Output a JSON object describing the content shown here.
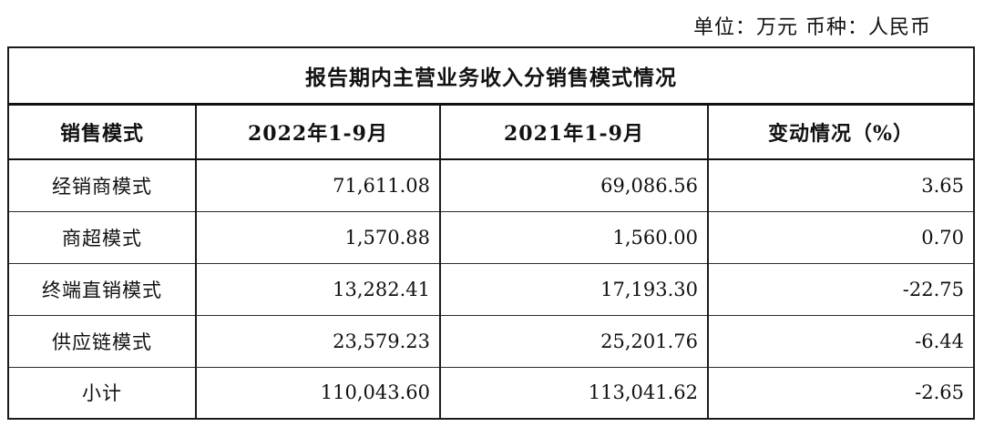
{
  "meta": {
    "unit_currency_label": "单位：万元 币种：人民币"
  },
  "table": {
    "title": "报告期内主营业务收入分销售模式情况",
    "columns": [
      "销售模式",
      "2022年1-9月",
      "2021年1-9月",
      "变动情况（%）"
    ],
    "rows": [
      {
        "model": "经销商模式",
        "period_2022": "71,611.08",
        "period_2021": "69,086.56",
        "change": "3.65"
      },
      {
        "model": "商超模式",
        "period_2022": "1,570.88",
        "period_2021": "1,560.00",
        "change": "0.70"
      },
      {
        "model": "终端直销模式",
        "period_2022": "13,282.41",
        "period_2021": "17,193.30",
        "change": "-22.75"
      },
      {
        "model": "供应链模式",
        "period_2022": "23,579.23",
        "period_2021": "25,201.76",
        "change": "-6.44"
      },
      {
        "model": "小计",
        "period_2022": "110,043.60",
        "period_2021": "113,041.62",
        "change": "-2.65"
      }
    ]
  }
}
